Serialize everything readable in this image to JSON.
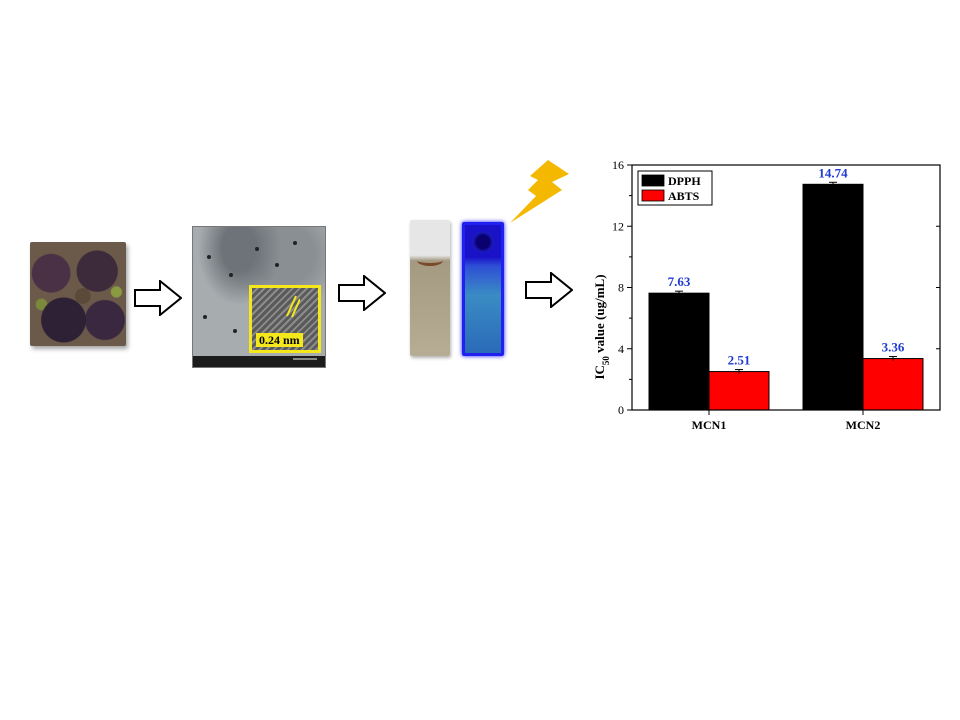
{
  "colors": {
    "dpph": "#000000",
    "abts": "#ff0000",
    "data_label": "#1f3bd1",
    "inset_border": "#f4e81c",
    "bolt": "#f5b800"
  },
  "icons": [
    "outline-arrow-icon",
    "lightning-bolt-icon"
  ],
  "tem_inset": {
    "lattice_label": "0.24 nm"
  },
  "chart_data": {
    "type": "bar",
    "categories": [
      "MCN1",
      "MCN2"
    ],
    "series": [
      {
        "name": "DPPH",
        "values": [
          7.63,
          14.74
        ],
        "labels": [
          "7.63",
          "14.74"
        ]
      },
      {
        "name": "ABTS",
        "values": [
          2.51,
          3.36
        ],
        "labels": [
          "2.51",
          "3.36"
        ]
      }
    ],
    "ylabel_main": "IC",
    "ylabel_sub": "50",
    "ylabel_rest": " value (ug/mL)",
    "ylim": [
      0,
      16
    ],
    "yticks": [
      0,
      4,
      8,
      12,
      16
    ],
    "legend_position": "top-left",
    "error_bars": true,
    "grid": false
  }
}
